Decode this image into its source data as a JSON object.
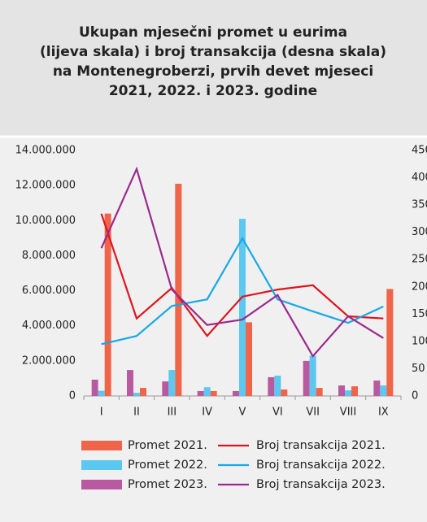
{
  "chart_data": {
    "type": "bar-line",
    "title": [
      "Ukupan mjesečni promet u eurima",
      "(lijeva skala) i broj transakcija (desna skala)",
      "na Montenegroberzi, prvih devet mjeseci",
      "2021, 2022. i 2023. godine"
    ],
    "categories": [
      "I",
      "II",
      "III",
      "IV",
      "V",
      "VI",
      "VII",
      "VIII",
      "IX"
    ],
    "series": [
      {
        "name": "Promet 2021.",
        "kind": "bar",
        "color": "#f0644a",
        "values": [
          10400000,
          460000,
          12100000,
          280000,
          4200000,
          370000,
          460000,
          550000,
          6100000
        ]
      },
      {
        "name": "Promet 2022.",
        "kind": "bar",
        "color": "#5cc8f0",
        "values": [
          300000,
          180000,
          1480000,
          500000,
          10100000,
          1160000,
          2300000,
          320000,
          600000
        ]
      },
      {
        "name": "Promet 2023.",
        "kind": "bar",
        "color": "#b95aa0",
        "values": [
          930000,
          1480000,
          830000,
          280000,
          280000,
          1070000,
          2000000,
          600000,
          880000
        ]
      },
      {
        "name": "Broj transakcija 2021.",
        "kind": "line",
        "axis": "y2",
        "color": "#e0141e",
        "values": [
          334,
          142,
          198,
          110,
          182,
          195,
          203,
          146,
          142
        ]
      },
      {
        "name": "Broj transakcija 2022.",
        "kind": "line",
        "axis": "y2",
        "color": "#18a8e6",
        "values": [
          95,
          110,
          165,
          177,
          289,
          177,
          155,
          134,
          164
        ]
      },
      {
        "name": "Broj transakcija 2023.",
        "kind": "line",
        "axis": "y2",
        "color": "#9b2a8c",
        "values": [
          271,
          416,
          195,
          130,
          140,
          185,
          73,
          146,
          106
        ]
      }
    ],
    "ylim": [
      0,
      14000000
    ],
    "yticks": [
      0,
      {
        "value": 2000000,
        "label": "2.000.000"
      },
      {
        "value": 4000000,
        "label": "4.000.000"
      },
      {
        "value": 6000000,
        "label": "6.000.000"
      },
      {
        "value": 8000000,
        "label": "8.000.000"
      },
      {
        "value": 10000000,
        "label": "10.000.000"
      },
      {
        "value": 12000000,
        "label": "12.000.000"
      },
      {
        "value": 14000000,
        "label": "14.000.000"
      }
    ],
    "y2lim": [
      0,
      450
    ],
    "y2ticks": [
      0,
      50,
      100,
      150,
      200,
      250,
      300,
      350,
      400,
      450
    ]
  }
}
